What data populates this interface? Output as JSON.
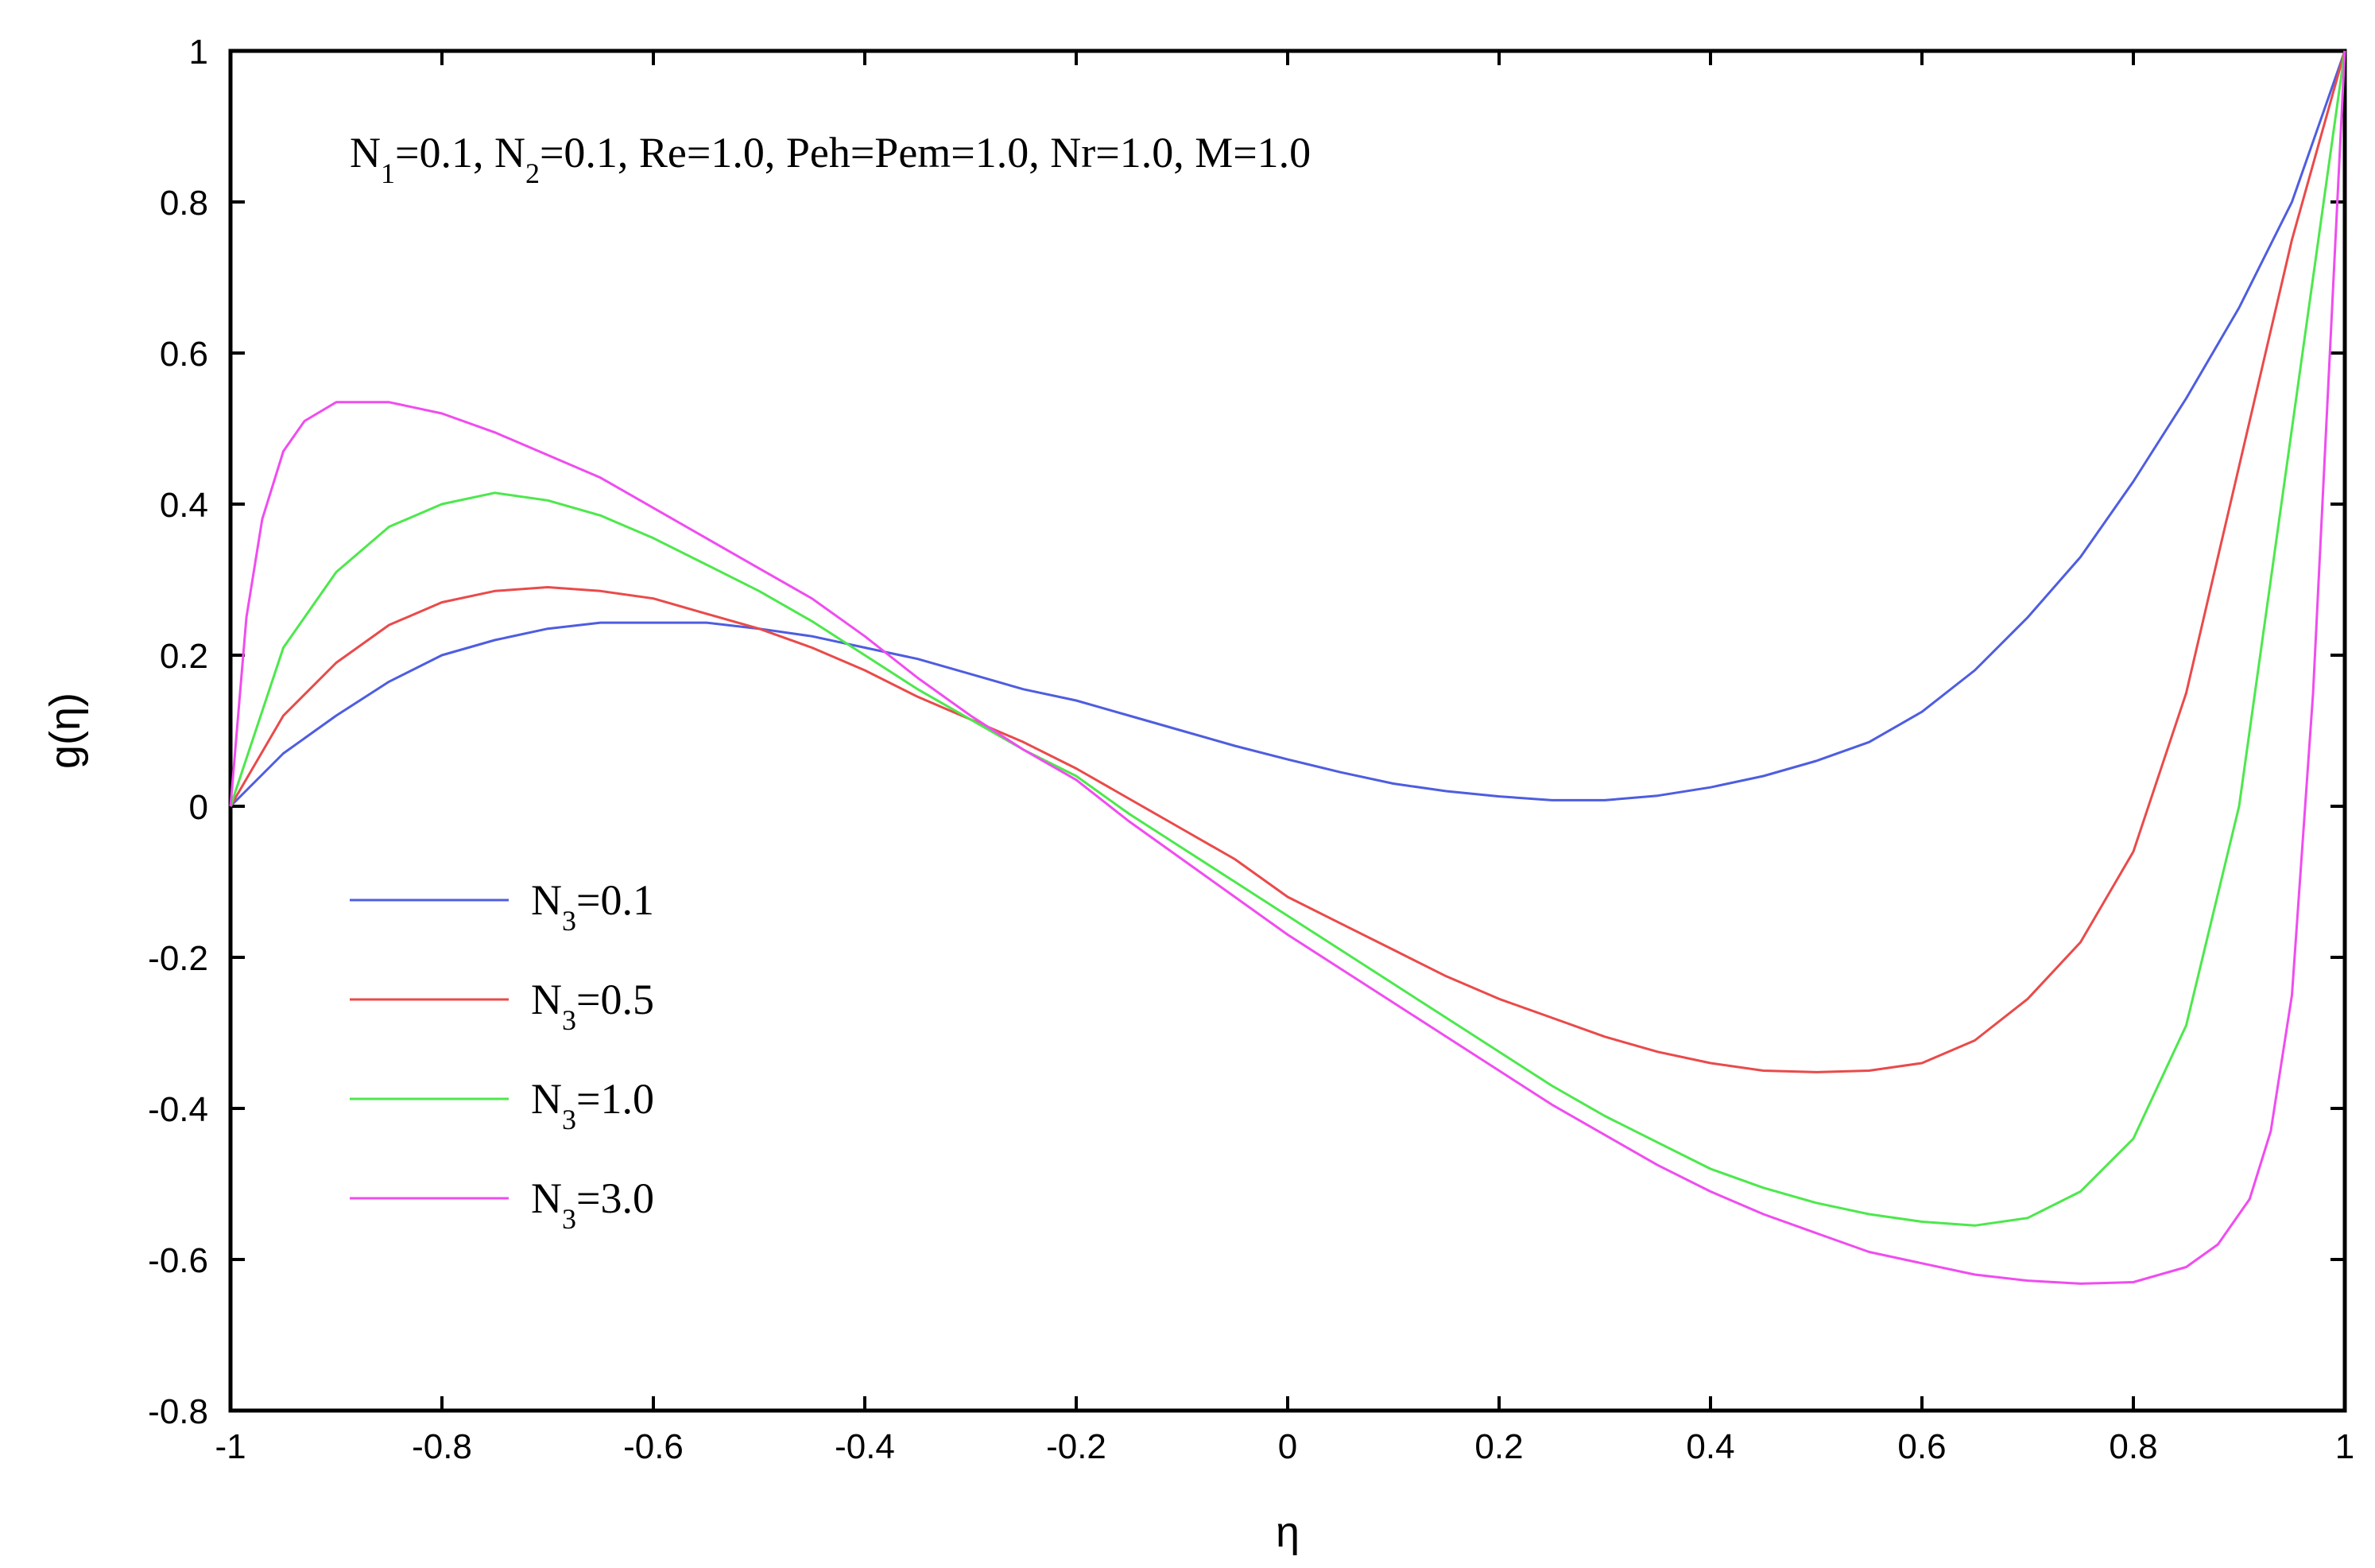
{
  "chart_data": {
    "type": "line",
    "xlabel": "η",
    "ylabel": "g(η)",
    "xlim": [
      -1,
      1
    ],
    "ylim": [
      -0.8,
      1
    ],
    "xticks": [
      "-1",
      "-0.8",
      "-0.6",
      "-0.4",
      "-0.2",
      "0",
      "0.2",
      "0.4",
      "0.6",
      "0.8",
      "1"
    ],
    "yticks": [
      "-0.8",
      "-0.6",
      "-0.4",
      "-0.2",
      "0",
      "0.2",
      "0.4",
      "0.6",
      "0.8",
      "1"
    ],
    "annotation": {
      "parts": [
        {
          "t": "N"
        },
        {
          "t": "1",
          "sub": true
        },
        {
          "t": "=0.1, N"
        },
        {
          "t": "2",
          "sub": true
        },
        {
          "t": "=0.1, Re=1.0, Peh=Pem=1.0, Nr=1.0, M=1.0"
        }
      ]
    },
    "legend_position": "lower-left",
    "series": [
      {
        "name": "N3=0.1",
        "label_base": "N",
        "label_sub": "3",
        "label_value": "=0.1",
        "color": "#4e5de0",
        "x": [
          -1,
          -0.95,
          -0.9,
          -0.85,
          -0.8,
          -0.75,
          -0.7,
          -0.65,
          -0.6,
          -0.55,
          -0.5,
          -0.45,
          -0.4,
          -0.35,
          -0.3,
          -0.25,
          -0.2,
          -0.15,
          -0.1,
          -0.05,
          0,
          0.05,
          0.1,
          0.15,
          0.2,
          0.25,
          0.3,
          0.35,
          0.4,
          0.45,
          0.5,
          0.55,
          0.6,
          0.65,
          0.7,
          0.75,
          0.8,
          0.85,
          0.9,
          0.95,
          1.0
        ],
        "y": [
          0.0,
          0.07,
          0.12,
          0.165,
          0.2,
          0.22,
          0.235,
          0.243,
          0.243,
          0.243,
          0.235,
          0.225,
          0.21,
          0.195,
          0.175,
          0.155,
          0.14,
          0.12,
          0.1,
          0.08,
          0.062,
          0.045,
          0.03,
          0.02,
          0.013,
          0.008,
          0.008,
          0.014,
          0.025,
          0.04,
          0.06,
          0.085,
          0.125,
          0.18,
          0.25,
          0.33,
          0.43,
          0.54,
          0.66,
          0.8,
          1.0
        ]
      },
      {
        "name": "N3=0.5",
        "label_base": "N",
        "label_sub": "3",
        "label_value": "=0.5",
        "color": "#ea4a4a",
        "x": [
          -1,
          -0.95,
          -0.9,
          -0.85,
          -0.8,
          -0.75,
          -0.7,
          -0.65,
          -0.6,
          -0.55,
          -0.5,
          -0.45,
          -0.4,
          -0.35,
          -0.3,
          -0.25,
          -0.2,
          -0.15,
          -0.1,
          -0.05,
          0,
          0.05,
          0.1,
          0.15,
          0.2,
          0.25,
          0.3,
          0.35,
          0.4,
          0.45,
          0.5,
          0.55,
          0.6,
          0.65,
          0.7,
          0.75,
          0.8,
          0.85,
          0.9,
          0.95,
          1.0
        ],
        "y": [
          0.0,
          0.12,
          0.19,
          0.24,
          0.27,
          0.285,
          0.29,
          0.285,
          0.275,
          0.255,
          0.235,
          0.21,
          0.18,
          0.145,
          0.115,
          0.085,
          0.05,
          0.01,
          -0.03,
          -0.07,
          -0.12,
          -0.155,
          -0.19,
          -0.225,
          -0.255,
          -0.28,
          -0.305,
          -0.325,
          -0.34,
          -0.35,
          -0.352,
          -0.35,
          -0.34,
          -0.31,
          -0.255,
          -0.18,
          -0.06,
          0.15,
          0.45,
          0.75,
          1.0
        ]
      },
      {
        "name": "N3=1.0",
        "label_base": "N",
        "label_sub": "3",
        "label_value": "=1.0",
        "color": "#4ce84c",
        "x": [
          -1,
          -0.95,
          -0.9,
          -0.85,
          -0.8,
          -0.75,
          -0.7,
          -0.65,
          -0.6,
          -0.55,
          -0.5,
          -0.45,
          -0.4,
          -0.35,
          -0.3,
          -0.25,
          -0.2,
          -0.15,
          -0.1,
          -0.05,
          0,
          0.05,
          0.1,
          0.15,
          0.2,
          0.25,
          0.3,
          0.35,
          0.4,
          0.45,
          0.5,
          0.55,
          0.6,
          0.65,
          0.7,
          0.75,
          0.8,
          0.85,
          0.9,
          0.95,
          1.0
        ],
        "y": [
          0.0,
          0.21,
          0.31,
          0.37,
          0.4,
          0.415,
          0.405,
          0.385,
          0.355,
          0.32,
          0.285,
          0.245,
          0.2,
          0.155,
          0.115,
          0.075,
          0.04,
          -0.01,
          -0.055,
          -0.1,
          -0.145,
          -0.19,
          -0.235,
          -0.28,
          -0.325,
          -0.37,
          -0.41,
          -0.445,
          -0.48,
          -0.505,
          -0.525,
          -0.54,
          -0.55,
          -0.555,
          -0.545,
          -0.51,
          -0.44,
          -0.29,
          0.0,
          0.5,
          1.0
        ]
      },
      {
        "name": "N3=3.0",
        "label_base": "N",
        "label_sub": "3",
        "label_value": "=3.0",
        "color": "#f04cf0",
        "x": [
          -1,
          -0.985,
          -0.97,
          -0.95,
          -0.93,
          -0.9,
          -0.85,
          -0.8,
          -0.75,
          -0.7,
          -0.65,
          -0.6,
          -0.55,
          -0.5,
          -0.45,
          -0.4,
          -0.35,
          -0.3,
          -0.25,
          -0.2,
          -0.15,
          -0.1,
          -0.05,
          0,
          0.05,
          0.1,
          0.15,
          0.2,
          0.25,
          0.3,
          0.35,
          0.4,
          0.45,
          0.5,
          0.55,
          0.6,
          0.65,
          0.7,
          0.75,
          0.8,
          0.85,
          0.88,
          0.91,
          0.93,
          0.95,
          0.97,
          1.0
        ],
        "y": [
          0.0,
          0.25,
          0.38,
          0.47,
          0.51,
          0.535,
          0.535,
          0.52,
          0.495,
          0.465,
          0.435,
          0.395,
          0.355,
          0.315,
          0.275,
          0.225,
          0.17,
          0.12,
          0.075,
          0.035,
          -0.02,
          -0.07,
          -0.12,
          -0.17,
          -0.215,
          -0.26,
          -0.305,
          -0.35,
          -0.395,
          -0.435,
          -0.475,
          -0.51,
          -0.54,
          -0.565,
          -0.59,
          -0.605,
          -0.62,
          -0.628,
          -0.632,
          -0.63,
          -0.61,
          -0.58,
          -0.52,
          -0.43,
          -0.25,
          0.15,
          1.0
        ]
      }
    ]
  }
}
